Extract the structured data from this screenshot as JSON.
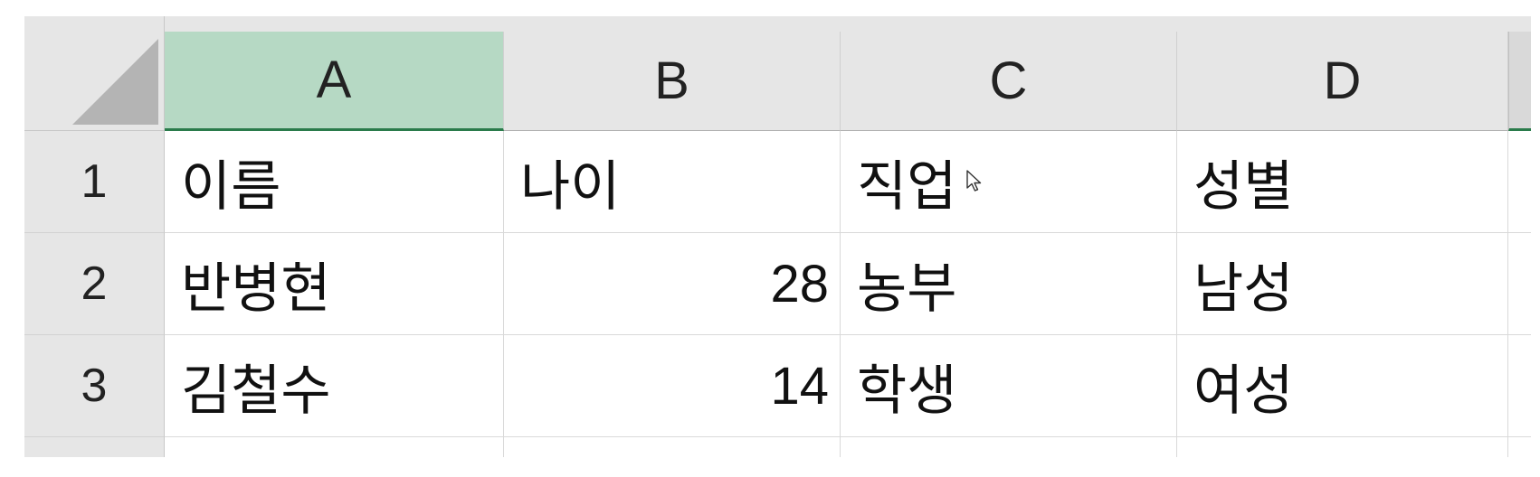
{
  "columns": [
    "A",
    "B",
    "C",
    "D"
  ],
  "selected_column": "A",
  "rows": [
    {
      "row_number": "1",
      "cells": [
        "이름",
        "나이",
        "직업",
        "성별"
      ]
    },
    {
      "row_number": "2",
      "cells": [
        "반병현",
        "28",
        "농부",
        "남성"
      ]
    },
    {
      "row_number": "3",
      "cells": [
        "김철수",
        "14",
        "학생",
        "여성"
      ]
    }
  ],
  "colors": {
    "header_bg": "#e6e6e6",
    "selected_header_bg": "#b6d9c4",
    "selection_accent": "#2a7b4b",
    "grid_line": "#d9d9d9"
  },
  "icons": {
    "select_all": "triangle-corner-icon",
    "pointer": "mouse-cursor-icon"
  }
}
